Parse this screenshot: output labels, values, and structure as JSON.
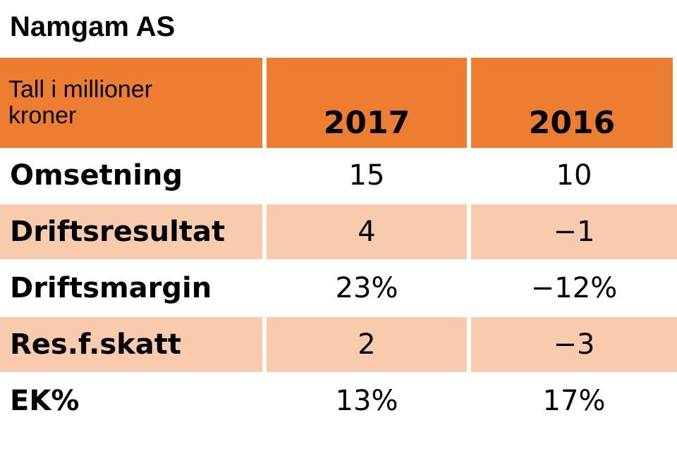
{
  "title": "Namgam AS",
  "colors": {
    "header_bg": "#ed7d31",
    "shaded_row_bg": "#f8cbad",
    "plain_row_bg": "#ffffff"
  },
  "chart_data": {
    "type": "table",
    "header_label": "Tall i millioner kroner",
    "columns": [
      "2017",
      "2016"
    ],
    "rows": [
      {
        "label": "Omsetning",
        "values": [
          "15",
          "10"
        ],
        "shaded": false
      },
      {
        "label": "Driftsresultat",
        "values": [
          "4",
          "−1"
        ],
        "shaded": true
      },
      {
        "label": "Driftsmargin",
        "values": [
          "23%",
          "−12%"
        ],
        "shaded": false
      },
      {
        "label": "Res.f.skatt",
        "values": [
          "2",
          "−3"
        ],
        "shaded": true
      },
      {
        "label": "EK%",
        "values": [
          "13%",
          "17%"
        ],
        "shaded": false
      }
    ]
  }
}
